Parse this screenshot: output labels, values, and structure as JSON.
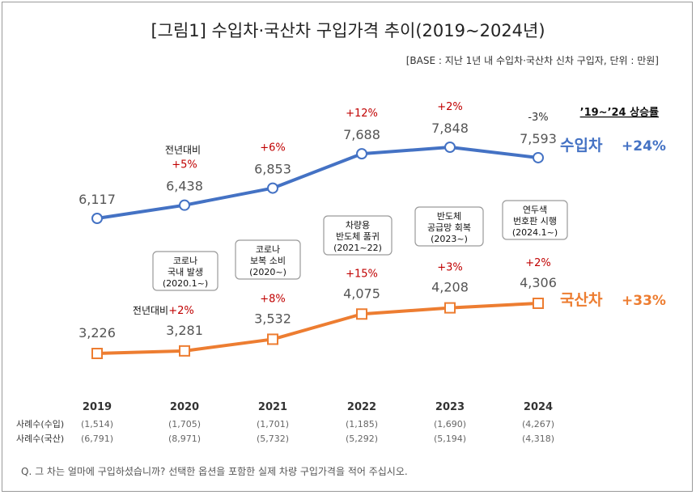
{
  "title": "[그림1] 수입차·국산차 구입가격 추이(2019~2024년)",
  "base_note": "[BASE : 지난 1년 내 수입차·국산차 신차 구입자, 단위 : 만원]",
  "footnote": "Q. 그 차는 얼마에 구입하셨습니까? 선택한 옵션을 포함한 실제 차량 구입가격을 적어 주십시오.",
  "growth_header": "’19~’24 상승률",
  "colors": {
    "import": "#4472c4",
    "domestic": "#ed7d31",
    "growth_up": "#c00000"
  },
  "chart_data": {
    "type": "line",
    "categories": [
      "2019",
      "2020",
      "2021",
      "2022",
      "2023",
      "2024"
    ],
    "series": [
      {
        "name": "수입차",
        "values": [
          6117,
          6438,
          6853,
          7688,
          7848,
          7593
        ],
        "value_labels": [
          "6,117",
          "6,438",
          "6,853",
          "7,688",
          "7,848",
          "7,593"
        ],
        "change_labels": [
          "",
          "+5%",
          "+6%",
          "+12%",
          "+2%",
          "-3%"
        ],
        "total_growth": "+24%"
      },
      {
        "name": "국산차",
        "values": [
          3226,
          3281,
          3532,
          4075,
          4208,
          4306
        ],
        "value_labels": [
          "3,226",
          "3,281",
          "3,532",
          "4,075",
          "4,208",
          "4,306"
        ],
        "change_labels": [
          "",
          "+2%",
          "+8%",
          "+15%",
          "+3%",
          "+2%"
        ],
        "total_growth": "+33%"
      }
    ],
    "yoy_label": "전년대비",
    "sample_rows": [
      {
        "label": "사례수(수입)",
        "values": [
          "(1,514)",
          "(1,705)",
          "(1,701)",
          "(1,185)",
          "(1,690)",
          "(4,267)"
        ]
      },
      {
        "label": "사례수(국산)",
        "values": [
          "(6,791)",
          "(8,971)",
          "(5,732)",
          "(5,292)",
          "(5,194)",
          "(4,318)"
        ]
      }
    ],
    "annotations": [
      {
        "year": "2020",
        "lines": [
          "코로나",
          "국내 발생",
          "(2020.1~)"
        ]
      },
      {
        "year": "2021",
        "lines": [
          "코로나",
          "보복 소비",
          "(2020~)"
        ]
      },
      {
        "year": "2022",
        "lines": [
          "차량용",
          "반도체 품귀",
          "(2021~22)"
        ]
      },
      {
        "year": "2023",
        "lines": [
          "반도체",
          "공급망 회복",
          "(2023~)"
        ]
      },
      {
        "year": "2024",
        "lines": [
          "연두색",
          "번호판 시행",
          "(2024.1~)"
        ]
      }
    ]
  }
}
